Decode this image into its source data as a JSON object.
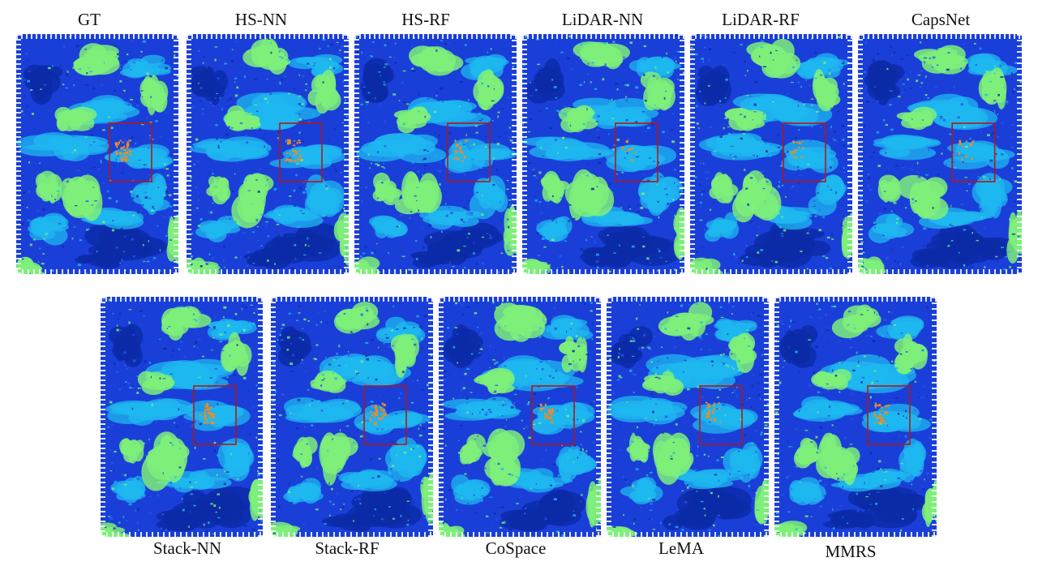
{
  "panels": [
    {
      "id": "gt",
      "label": "GT"
    },
    {
      "id": "hs-nn",
      "label": "HS-NN"
    },
    {
      "id": "hs-rf",
      "label": "HS-RF"
    },
    {
      "id": "lidar-nn",
      "label": "LiDAR-NN"
    },
    {
      "id": "lidar-rf",
      "label": "LiDAR-RF"
    },
    {
      "id": "capsnet",
      "label": "CapsNet"
    },
    {
      "id": "stack-nn",
      "label": "Stack-NN"
    },
    {
      "id": "stack-rf",
      "label": "Stack-RF"
    },
    {
      "id": "cospace",
      "label": "CoSpace"
    },
    {
      "id": "lema",
      "label": "LeMA"
    },
    {
      "id": "mmrs",
      "label": "MMRS"
    }
  ],
  "colors": {
    "class_deep_blue": "#1a3fd8",
    "class_dark_blue": "#0b2aa8",
    "class_cyan": "#1fb8f0",
    "class_light_green": "#7ef07a",
    "class_orange": "#f08a22",
    "highlight_box": "#b01818"
  }
}
